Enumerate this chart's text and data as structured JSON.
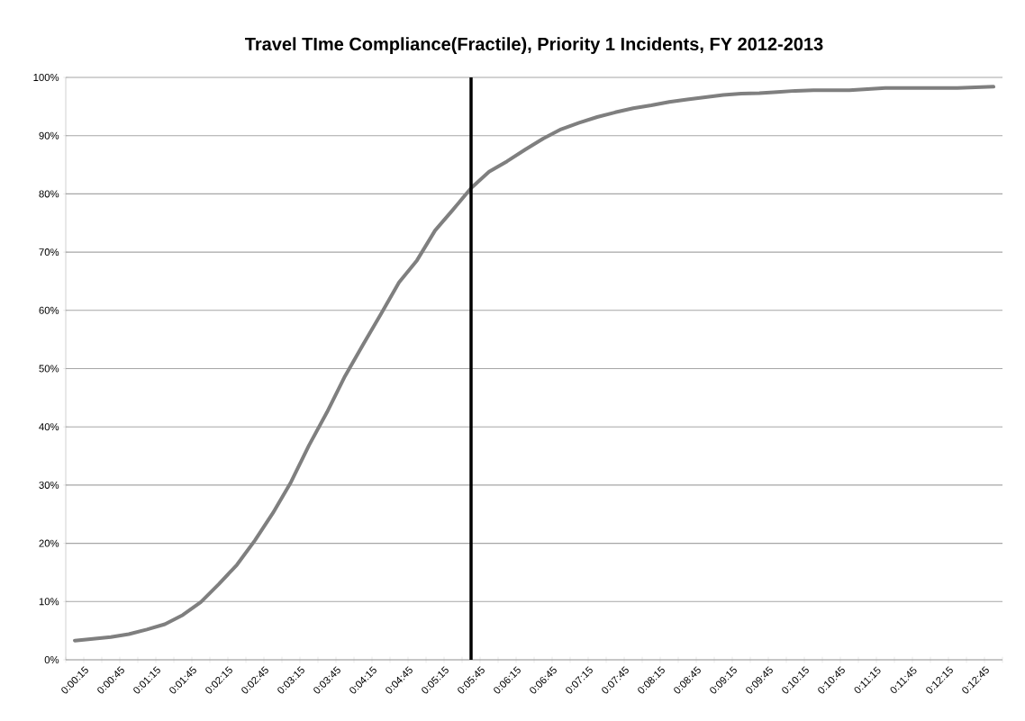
{
  "chart_data": {
    "type": "line",
    "title": "Travel TIme Compliance(Fractile), Priority 1 Incidents, FY 2012-2013",
    "categories": [
      "0:00:15",
      null,
      "0:00:45",
      null,
      "0:01:15",
      null,
      "0:01:45",
      null,
      "0:02:15",
      null,
      "0:02:45",
      null,
      "0:03:15",
      null,
      "0:03:45",
      null,
      "0:04:15",
      null,
      "0:04:45",
      null,
      "0:05:15",
      null,
      "0:05:45",
      null,
      "0:06:15",
      null,
      "0:06:45",
      null,
      "0:07:15",
      null,
      "0:07:45",
      null,
      "0:08:15",
      null,
      "0:08:45",
      null,
      "0:09:15",
      null,
      "0:09:45",
      null,
      "0:10:15",
      null,
      "0:10:45",
      null,
      "0:11:15",
      null,
      "0:11:45",
      null,
      "0:12:15",
      null,
      "0:12:45",
      null
    ],
    "series": [
      {
        "color": "#7f7f7f",
        "values": [
          3.3,
          3.6,
          3.9,
          4.4,
          5.2,
          6.1,
          7.7,
          9.9,
          13.0,
          16.3,
          20.5,
          25.2,
          30.5,
          36.8,
          42.5,
          48.7,
          54.1,
          59.4,
          64.8,
          68.6,
          73.7,
          77.3,
          81.0,
          83.8,
          85.6,
          87.6,
          89.5,
          91.1,
          92.2,
          93.2,
          94.0,
          94.7,
          95.2,
          95.8,
          96.2,
          96.6,
          97.0,
          97.2,
          97.3,
          97.5,
          97.7,
          97.8,
          97.8,
          97.8,
          98.0,
          98.2,
          98.2,
          98.2,
          98.2,
          98.2,
          98.3,
          98.4
        ]
      }
    ],
    "ylim": [
      0,
      100
    ],
    "yticks": [
      {
        "value": 0,
        "label": "0%"
      },
      {
        "value": 10,
        "label": "10%"
      },
      {
        "value": 20,
        "label": "20%"
      },
      {
        "value": 30,
        "label": "30%"
      },
      {
        "value": 40,
        "label": "40%"
      },
      {
        "value": 50,
        "label": "50%"
      },
      {
        "value": 60,
        "label": "60%"
      },
      {
        "value": 70,
        "label": "70%"
      },
      {
        "value": 80,
        "label": "80%"
      },
      {
        "value": 90,
        "label": "90%"
      },
      {
        "value": 100,
        "label": "100%"
      }
    ],
    "grid": "y",
    "ref_lines": [
      {
        "axis": "x",
        "value": "0:05:45",
        "color": "#000000"
      }
    ]
  }
}
